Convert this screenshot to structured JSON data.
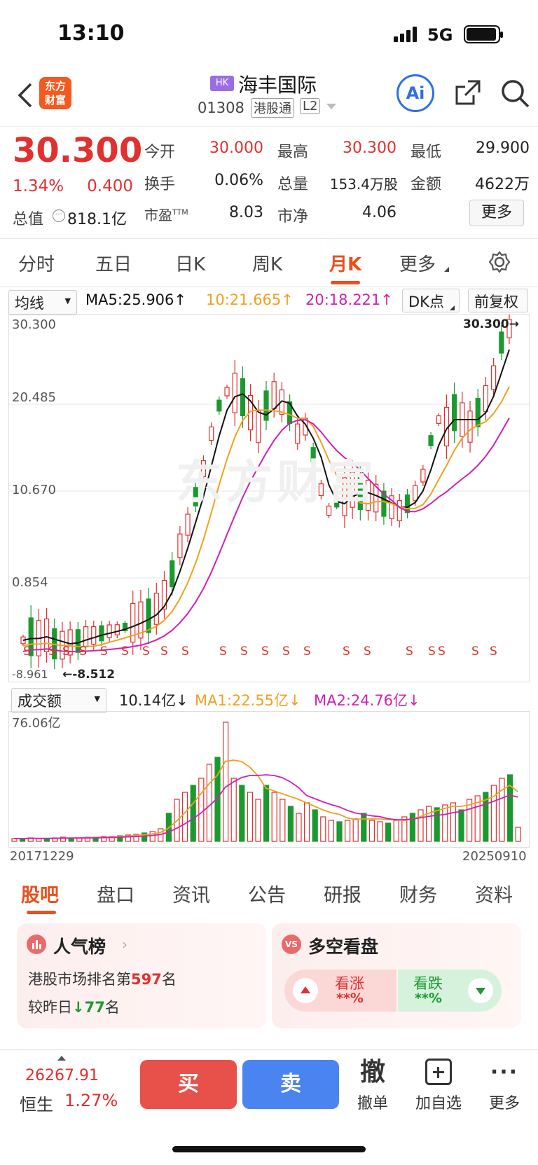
{
  "status": {
    "time": "13:10",
    "network": "5G"
  },
  "nav": {
    "logo_line1": "东方",
    "logo_line2": "财富",
    "market_badge": "HK",
    "name": "海丰国际",
    "code": "01308",
    "tag1": "港股通",
    "tag2": "L2",
    "ai": "Ai"
  },
  "quote": {
    "price": "30.300",
    "pct": "1.34%",
    "chg": "0.400",
    "open_l": "今开",
    "open_v": "30.000",
    "high_l": "最高",
    "high_v": "30.300",
    "low_l": "最低",
    "low_v": "29.900",
    "turn_l": "换手",
    "turn_v": "0.06%",
    "vol_l": "总量",
    "vol_v": "153.4万股",
    "amt_l": "金额",
    "amt_v": "4622万",
    "cap_l": "总值",
    "cap_v": "818.1亿",
    "pe_l": "市盈",
    "pe_sup": "TTM",
    "pe_v": "8.03",
    "pb_l": "市净",
    "pb_v": "4.06",
    "more": "更多"
  },
  "tabs": [
    "分时",
    "五日",
    "日K",
    "周K",
    "月K",
    "更多"
  ],
  "active_tab": "月K",
  "ma": {
    "select": "均线",
    "ma5": "MA5:25.906↑",
    "ma10": "10:21.665↑",
    "ma20": "20:18.221↑",
    "dk": "DK点",
    "adj": "前复权"
  },
  "axis": {
    "y1": "30.300",
    "y2": "20.485",
    "y3": "10.670",
    "y4": "0.854",
    "y5": "-8.961",
    "last_label": "30.300→",
    "min_label": "←-8.512"
  },
  "vol": {
    "select": "成交额",
    "current": "10.14亿↓",
    "ma1": "MA1:22.55亿↓",
    "ma2": "MA2:24.76亿↓",
    "top": "76.06亿",
    "start_date": "20171229",
    "end_date": "20250910"
  },
  "section_tabs": [
    "股吧",
    "盘口",
    "资讯",
    "公告",
    "研报",
    "财务",
    "资料"
  ],
  "active_section": "股吧",
  "card1": {
    "title": "人气榜",
    "line1_a": "港股市场排名第",
    "line1_b": "597",
    "line1_c": "名",
    "line2_a": "较昨日",
    "line2_b": "↓77",
    "line2_c": "名"
  },
  "card2": {
    "title": "多空看盘",
    "up_label": "看涨",
    "up_val": "**%",
    "down_label": "看跌",
    "down_val": "**%"
  },
  "bottom": {
    "index_val": "26267.91",
    "index_name": "恒生",
    "index_pct": "1.27%",
    "buy": "买",
    "sell": "卖",
    "cancel_icon": "撤",
    "cancel": "撤单",
    "add": "加自选",
    "more": "更多"
  },
  "colors": {
    "up": "#e0302f",
    "down": "#1a9a2e",
    "ma5": "#111111",
    "ma10": "#f0a020",
    "ma20": "#d11fb4",
    "accent": "#e8511f"
  },
  "chart_data": {
    "type": "candlestick",
    "period": "monthly",
    "y_ticks": [
      30.3,
      20.485,
      10.67,
      0.854,
      -8.961
    ],
    "ma5": 25.906,
    "ma10": 21.665,
    "ma20": 18.221,
    "last_close": 30.3,
    "min": -8.512,
    "volume_max": "76.06亿",
    "volume_current": "10.14亿",
    "x_start": "20171229",
    "x_end": "20250910"
  }
}
